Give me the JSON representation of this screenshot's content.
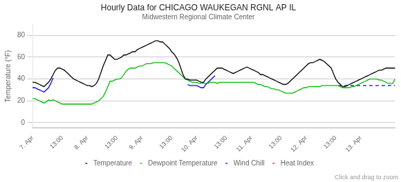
{
  "chart_data": {
    "type": "line",
    "title": "Hourly Data for CHICAGO WAUKEGAN RGNL AP IL",
    "subtitle": "Midwestern Regional Climate Center",
    "y_label": "Temperature (°F)",
    "annotations": [
      {
        "text": "Click and drag to zoom"
      }
    ],
    "ylim": [
      -5,
      90
    ],
    "yticks": [
      0,
      20,
      40,
      60,
      80
    ],
    "grid": true,
    "legend": "bottom",
    "categories": [
      "7. Apr",
      null,
      null,
      null,
      null,
      null,
      null,
      null,
      null,
      null,
      null,
      null,
      null,
      "13:00",
      null,
      null,
      null,
      null,
      null,
      null,
      null,
      null,
      null,
      null,
      "8. Apr",
      null,
      null,
      null,
      null,
      null,
      null,
      null,
      null,
      null,
      null,
      null,
      null,
      "13:00",
      null,
      null,
      null,
      null,
      null,
      null,
      null,
      null,
      null,
      null,
      "9. Apr",
      null,
      null,
      null,
      null,
      null,
      null,
      null,
      null,
      null,
      null,
      null,
      null,
      "13:00",
      null,
      null,
      null,
      null,
      null,
      null,
      null,
      null,
      null,
      null,
      "10. Apr",
      null,
      null,
      null,
      null,
      null,
      null,
      null,
      null,
      null,
      null,
      null,
      null,
      "13:00",
      null,
      null,
      null,
      null,
      null,
      null,
      null,
      null,
      null,
      null,
      "11. Apr",
      null,
      null,
      null,
      null,
      null,
      null,
      null,
      null,
      null,
      null,
      null,
      null,
      "13:00",
      null,
      null,
      null,
      null,
      null,
      null,
      null,
      null,
      null,
      null,
      "12. Apr",
      null,
      null,
      null,
      null,
      null,
      null,
      null,
      null,
      null,
      null,
      null,
      null,
      "13:00",
      null,
      null,
      null,
      null,
      null,
      null,
      null,
      null,
      null,
      null,
      "13. Apr",
      null,
      null,
      null,
      null,
      null,
      null,
      null,
      null,
      null,
      null,
      null,
      null,
      null,
      null,
      null
    ],
    "series": [
      {
        "name": "Temperature",
        "color": "#000000",
        "line_style": "solid",
        "values": [
          37,
          37,
          36,
          35,
          34,
          33,
          35,
          37,
          40,
          44,
          48,
          50,
          50,
          49,
          48,
          46,
          44,
          42,
          40,
          39,
          38,
          37,
          36,
          35,
          34,
          34,
          33,
          34,
          36,
          40,
          46,
          52,
          57,
          62,
          62,
          60,
          58,
          58,
          59,
          60,
          62,
          62,
          63,
          64,
          65,
          65,
          67,
          68,
          69,
          70,
          71,
          72,
          73,
          74,
          75,
          75,
          74,
          74,
          72,
          70,
          68,
          65,
          63,
          60,
          56,
          50,
          44,
          40,
          40,
          39,
          39,
          39,
          39,
          38,
          37,
          37,
          40,
          42,
          44,
          46,
          48,
          50,
          50,
          50,
          49,
          48,
          47,
          46,
          45,
          46,
          47,
          48,
          49,
          50,
          51,
          50,
          49,
          48,
          47,
          46,
          44,
          44,
          43,
          42,
          41,
          40,
          39,
          38,
          37,
          36,
          35,
          35,
          36,
          38,
          40,
          42,
          44,
          46,
          48,
          50,
          52,
          54,
          55,
          55,
          56,
          57,
          58,
          57,
          56,
          54,
          52,
          50,
          45,
          40,
          37,
          35,
          33,
          33,
          34,
          35,
          36,
          37,
          38,
          39,
          40,
          41,
          42,
          43,
          44,
          45,
          46,
          47,
          48,
          48,
          49,
          50,
          50,
          50,
          50,
          50
        ]
      },
      {
        "name": "Dewpoint Temperature",
        "color": "#00bb00",
        "line_style": "solid",
        "values": [
          22,
          22,
          21,
          20,
          19,
          18,
          19,
          21,
          20,
          21,
          20,
          19,
          18,
          17,
          17,
          17,
          17,
          17,
          17,
          17,
          17,
          17,
          17,
          17,
          17,
          17,
          17,
          18,
          19,
          20,
          22,
          24,
          28,
          33,
          38,
          38,
          39,
          40,
          40,
          41,
          44,
          47,
          49,
          50,
          50,
          50,
          51,
          52,
          52,
          53,
          54,
          54,
          54,
          55,
          55,
          55,
          55,
          55,
          55,
          54,
          53,
          52,
          50,
          48,
          46,
          44,
          42,
          40,
          39,
          38,
          37,
          37,
          37,
          36,
          36,
          36,
          36,
          36,
          37,
          37,
          37,
          36,
          37,
          37,
          37,
          37,
          37,
          37,
          37,
          37,
          37,
          37,
          37,
          37,
          37,
          37,
          37,
          37,
          36,
          35,
          35,
          34,
          33,
          33,
          32,
          31,
          31,
          30,
          30,
          29,
          28,
          27,
          27,
          27,
          27,
          28,
          29,
          30,
          31,
          32,
          32,
          33,
          33,
          33,
          33,
          33,
          33,
          34,
          34,
          34,
          34,
          34,
          34,
          34,
          34,
          33,
          32,
          32,
          32,
          32,
          33,
          33,
          34,
          35,
          36,
          37,
          38,
          39,
          40,
          40,
          40,
          40,
          39,
          39,
          38,
          37,
          36,
          36,
          36,
          40
        ]
      },
      {
        "name": "Wind Chill",
        "color": "#0000ff",
        "line_style": "solid",
        "values": [
          32,
          32,
          31,
          30,
          29,
          28,
          30,
          32,
          36,
          41,
          null,
          null,
          null,
          null,
          null,
          null,
          null,
          null,
          null,
          null,
          null,
          null,
          null,
          null,
          null,
          null,
          null,
          null,
          null,
          null,
          null,
          null,
          null,
          null,
          null,
          null,
          null,
          null,
          null,
          null,
          null,
          null,
          null,
          null,
          null,
          null,
          null,
          null,
          null,
          null,
          null,
          null,
          null,
          null,
          null,
          null,
          null,
          null,
          null,
          null,
          null,
          null,
          null,
          null,
          null,
          null,
          null,
          null,
          35,
          34,
          34,
          34,
          34,
          33,
          32,
          32,
          35,
          37,
          39,
          41,
          43,
          null,
          null,
          null,
          null,
          null,
          null,
          null,
          null,
          null,
          null,
          null,
          null,
          null,
          null,
          null,
          null,
          null,
          null,
          null,
          null,
          null,
          null,
          null,
          null,
          null,
          null,
          null,
          null,
          null,
          null,
          null,
          null,
          null,
          null,
          null,
          null,
          null,
          null,
          null,
          null,
          null,
          null,
          null,
          null,
          null,
          null,
          null,
          null,
          null,
          null,
          null,
          null,
          null,
          null,
          null,
          null,
          null,
          null,
          null,
          null,
          null,
          null,
          null,
          null,
          null,
          null,
          null,
          null,
          null,
          null,
          null,
          null,
          null,
          null,
          null,
          null,
          null,
          null,
          null
        ]
      },
      {
        "name": "Wind Chill",
        "color": "#0000ff",
        "line_style": "dashed",
        "values": [
          null,
          null,
          null,
          null,
          null,
          null,
          null,
          null,
          null,
          null,
          null,
          null,
          null,
          null,
          null,
          null,
          null,
          null,
          null,
          null,
          null,
          null,
          null,
          null,
          null,
          null,
          null,
          null,
          null,
          null,
          null,
          null,
          null,
          null,
          null,
          null,
          null,
          null,
          null,
          null,
          null,
          null,
          null,
          null,
          null,
          null,
          null,
          null,
          null,
          null,
          null,
          null,
          null,
          null,
          null,
          null,
          null,
          null,
          null,
          null,
          null,
          null,
          null,
          null,
          null,
          null,
          null,
          null,
          null,
          null,
          null,
          null,
          null,
          null,
          null,
          null,
          null,
          null,
          null,
          null,
          null,
          null,
          null,
          null,
          null,
          null,
          null,
          null,
          null,
          null,
          null,
          null,
          null,
          null,
          null,
          null,
          null,
          null,
          null,
          null,
          null,
          null,
          null,
          null,
          null,
          null,
          null,
          null,
          null,
          null,
          null,
          null,
          null,
          null,
          null,
          null,
          null,
          null,
          null,
          null,
          null,
          null,
          null,
          null,
          null,
          null,
          null,
          null,
          null,
          null,
          null,
          null,
          null,
          null,
          34,
          34,
          34,
          34,
          34,
          34,
          34,
          34,
          34,
          34,
          34,
          34,
          34,
          34,
          34,
          34,
          34,
          34,
          34,
          34,
          34,
          34,
          34,
          34,
          34,
          34
        ]
      },
      {
        "name": "Heat Index",
        "color": "#ff0000",
        "line_style": "solid",
        "values": [
          null,
          null,
          null,
          null,
          null,
          null,
          null,
          null,
          null,
          null,
          null,
          null,
          null,
          null,
          null,
          null,
          null,
          null,
          null,
          null,
          null,
          null,
          null,
          null,
          null,
          null,
          null,
          null,
          null,
          null,
          null,
          null,
          null,
          null,
          null,
          null,
          null,
          null,
          null,
          null,
          null,
          null,
          null,
          null,
          null,
          null,
          null,
          null,
          null,
          null,
          null,
          null,
          null,
          null,
          null,
          null,
          null,
          null,
          null,
          null,
          null,
          null,
          null,
          null,
          null,
          null,
          null,
          null,
          null,
          null,
          null,
          null,
          null,
          null,
          null,
          null,
          null,
          null,
          null,
          null,
          null,
          null,
          null,
          null,
          null,
          null,
          null,
          null,
          null,
          null,
          null,
          null,
          null,
          null,
          null,
          null,
          null,
          null,
          null,
          null,
          null,
          null,
          null,
          null,
          null,
          null,
          null,
          null,
          null,
          null,
          null,
          null,
          null,
          null,
          null,
          null,
          null,
          null,
          null,
          null,
          null,
          null,
          null,
          null,
          null,
          null,
          null,
          null,
          null,
          null,
          null,
          null,
          null,
          null,
          null,
          null,
          null,
          null,
          null,
          null,
          null,
          null,
          null,
          null,
          null,
          null,
          null,
          null,
          null,
          null,
          null,
          null,
          null,
          null,
          null,
          null,
          null,
          null,
          null,
          null
        ]
      }
    ]
  }
}
